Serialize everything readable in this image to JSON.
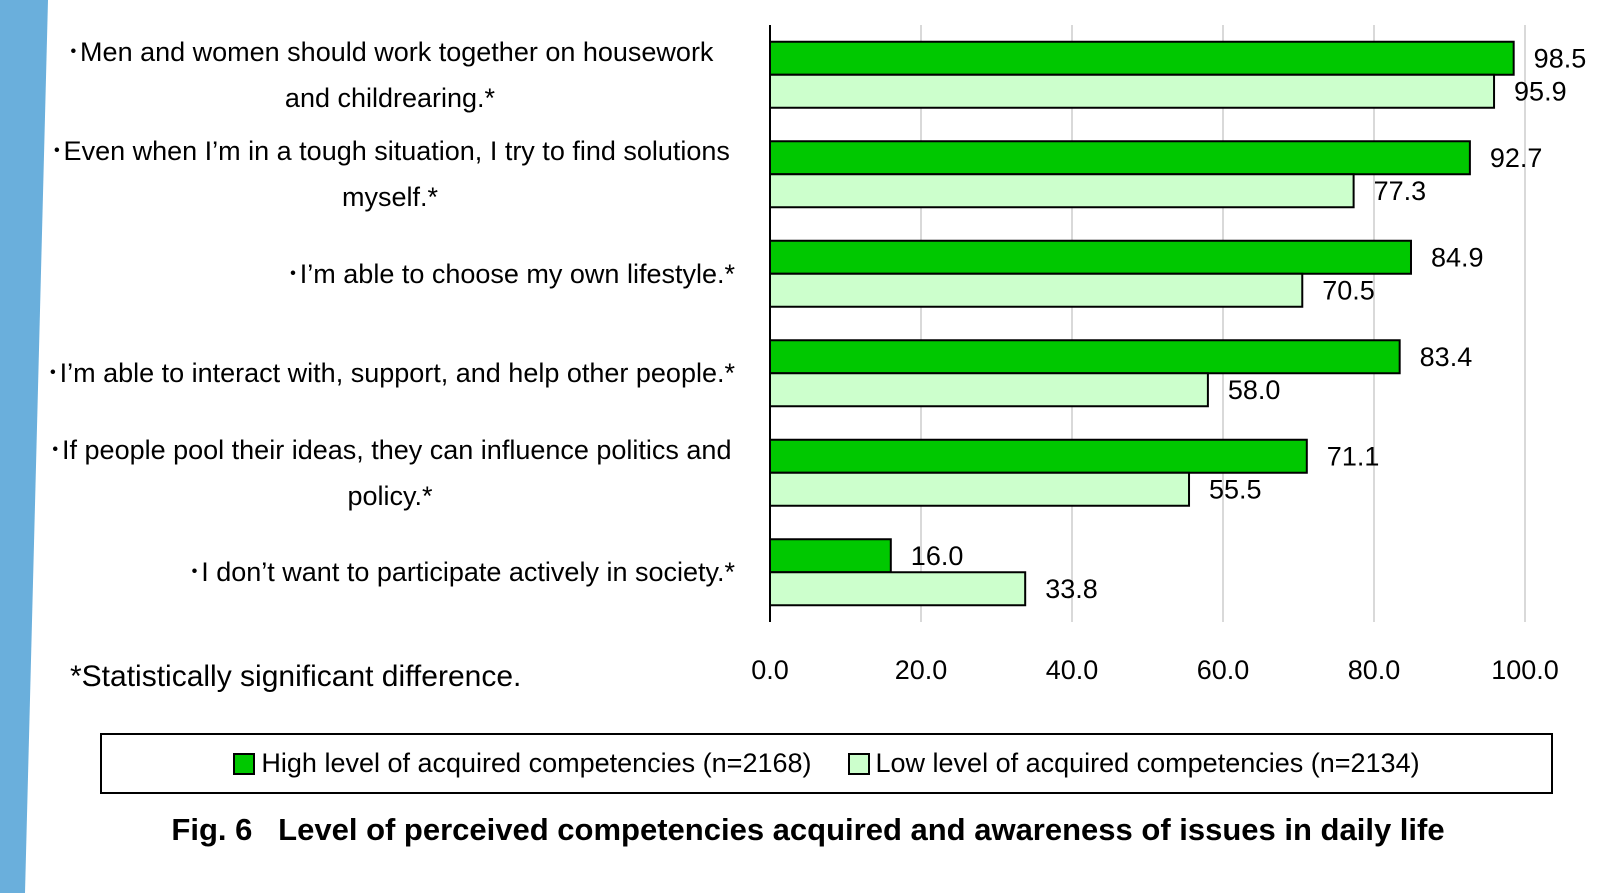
{
  "chart_data": {
    "type": "bar",
    "orientation": "horizontal",
    "title": "Fig. 6   Level of perceived competencies acquired and awareness of issues in daily life",
    "footnote": "*Statistically significant difference.",
    "categories": [
      "･Men and women should work together on housework and childrearing.*",
      "･Even when I’m in a tough situation, I try to find solutions myself.*",
      "･I’m able to choose my own lifestyle.*",
      "･I’m able to interact with, support, and help other people.*",
      "･If people pool their ideas, they can influence politics and policy.*",
      "･I don’t want to participate actively in society.*"
    ],
    "series": [
      {
        "name": "High level of acquired competencies (n=2168)",
        "color": "#00c800",
        "values": [
          98.5,
          92.7,
          84.9,
          83.4,
          71.1,
          16.0
        ],
        "value_labels": [
          "98.5",
          "92.7",
          "84.9",
          "83.4",
          "71.1",
          "16.0"
        ]
      },
      {
        "name": "Low level of acquired competencies (n=2134)",
        "color": "#ccffcc",
        "values": [
          95.9,
          77.3,
          70.5,
          58.0,
          55.5,
          33.8
        ],
        "value_labels": [
          "95.9",
          "77.3",
          "70.5",
          "58.0",
          "55.5",
          "33.8"
        ]
      }
    ],
    "xlim": [
      0,
      100
    ],
    "xticks": [
      {
        "value": 0,
        "label": "0.0"
      },
      {
        "value": 20,
        "label": "20.0"
      },
      {
        "value": 40,
        "label": "40.0"
      },
      {
        "value": 60,
        "label": "60.0"
      },
      {
        "value": 80,
        "label": "80.0"
      },
      {
        "value": 100,
        "label": "100.0"
      }
    ],
    "grid": true,
    "legend": "bottom"
  }
}
